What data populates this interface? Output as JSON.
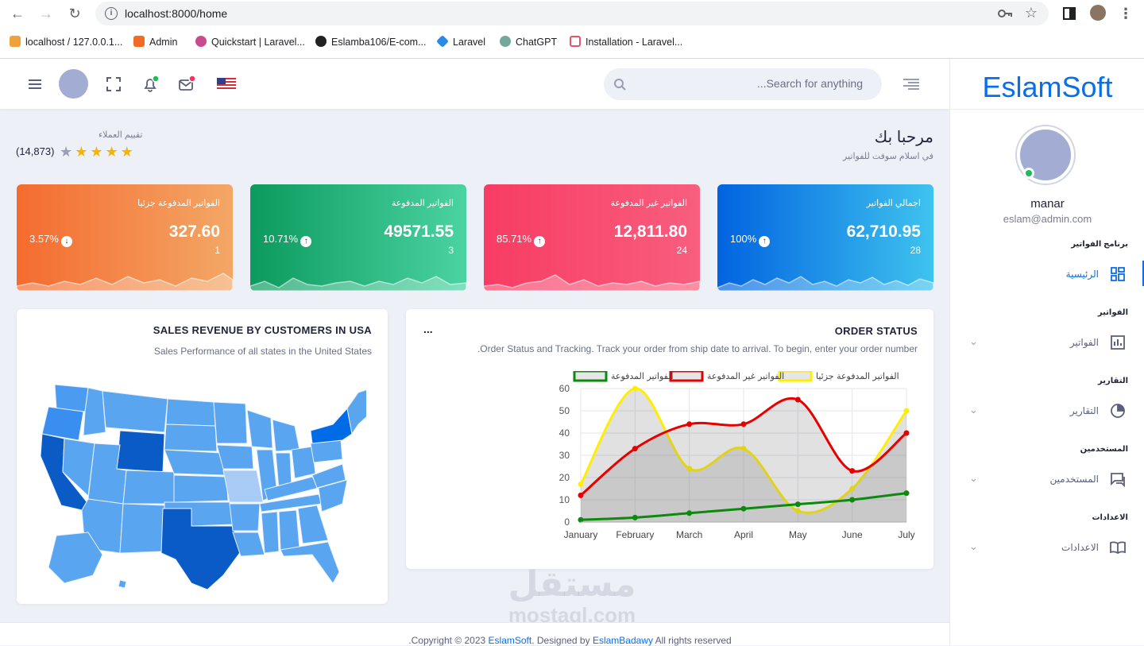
{
  "browser": {
    "url": "localhost:8000/home",
    "bookmarks": [
      "localhost / 127.0.0.1...",
      "Admin",
      "Quickstart | Laravel...",
      "Eslamba106/E-com...",
      "Laravel",
      "ChatGPT",
      "Installation - Laravel..."
    ]
  },
  "sidebar": {
    "brand": "EslamSoft",
    "user": {
      "name": "manar",
      "email": "eslam@admin.com"
    },
    "sections": [
      {
        "heading": "برنامج الفواتير",
        "item": "الرئيسية"
      },
      {
        "heading": "الفواتير",
        "item": "الفواتير"
      },
      {
        "heading": "التقارير",
        "item": "التقارير"
      },
      {
        "heading": "المستخدمين",
        "item": "المستخدمين"
      },
      {
        "heading": "الاعدادات",
        "item": "الاعدادات"
      }
    ]
  },
  "topbar": {
    "search_placeholder": "...Search for anything"
  },
  "welcome": {
    "title": "مرحبا بك",
    "subtitle": "في اسلام سوفت للفواتير"
  },
  "rating": {
    "label": "تقييم العملاء",
    "count": "(14,873)",
    "stars": 4,
    "max_stars": 5
  },
  "cards": [
    {
      "title": "اجمالي الفواتير",
      "value": "62,710.95",
      "count": "28",
      "percent": "100%",
      "trend": "up",
      "color_from": "#0263e0",
      "color_to": "#3ec3ee"
    },
    {
      "title": "الفواتير غير المدفوعة",
      "value": "12,811.80",
      "count": "24",
      "percent": "85.71%",
      "trend": "up",
      "color_from": "#f83c63",
      "color_to": "#f85e7e"
    },
    {
      "title": "الفواتير المدفوعة",
      "value": "49571.55",
      "count": "3",
      "percent": "10.71%",
      "trend": "up",
      "color_from": "#0c9a5e",
      "color_to": "#4bd3a2"
    },
    {
      "title": "الفواتير المدفوعة جزئيا",
      "value": "327.60",
      "count": "1",
      "percent": "3.57%",
      "trend": "down",
      "color_from": "#f46b2f",
      "color_to": "#f3a766"
    }
  ],
  "map_panel": {
    "title": "SALES REVENUE BY CUSTOMERS IN USA",
    "subtitle": "Sales Performance of all states in the United States"
  },
  "order_panel": {
    "title": "ORDER STATUS",
    "menu": "...",
    "subtitle": ".Order Status and Tracking. Track your order from ship date to arrival. To begin, enter your order number"
  },
  "chart_data": {
    "type": "line",
    "categories": [
      "January",
      "February",
      "March",
      "April",
      "May",
      "June",
      "July"
    ],
    "ylim": [
      0,
      60
    ],
    "yticks": [
      0,
      10,
      20,
      30,
      40,
      50,
      60
    ],
    "series": [
      {
        "name": "الفواتير المدفوعة جزئيا",
        "values": [
          17,
          60,
          24,
          33,
          5,
          15,
          50
        ],
        "color": "#ffee00",
        "fill": true
      },
      {
        "name": "الفواتير غير المدفوعة",
        "values": [
          12,
          33,
          44,
          44,
          55,
          23,
          40
        ],
        "color": "#e80000",
        "fill": true
      },
      {
        "name": "الفواتير المدفوعة",
        "values": [
          1,
          2,
          4,
          6,
          8,
          10,
          13
        ],
        "color": "#0d8a0d",
        "fill": false
      }
    ]
  },
  "footer": {
    "prefix": ".Copyright © 2023 ",
    "brand": "EslamSoft",
    "middle": ". Designed by ",
    "author": "EslamBadawy",
    "suffix": " All rights reserved"
  },
  "watermark": {
    "arabic": "مستقل",
    "latin": "mostaql.com"
  },
  "colors": {
    "accent": "#0a6ee8",
    "map_base": "#5aa5ef",
    "map_dark": "#0a5bc5"
  }
}
